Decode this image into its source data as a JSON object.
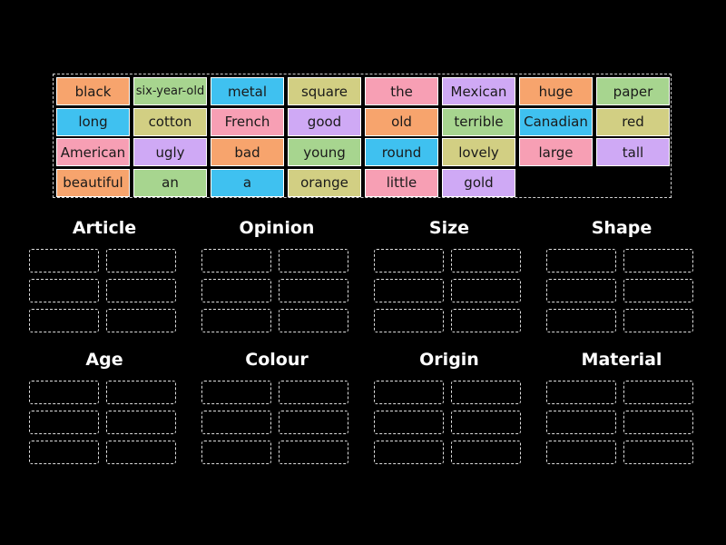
{
  "tiles": [
    {
      "text": "black",
      "color": "#f7a46d"
    },
    {
      "text": "six-year-old",
      "color": "#a7d58f"
    },
    {
      "text": "metal",
      "color": "#3fc1f0"
    },
    {
      "text": "square",
      "color": "#d2cf83"
    },
    {
      "text": "the",
      "color": "#f79fb4"
    },
    {
      "text": "Mexican",
      "color": "#cfa9f5"
    },
    {
      "text": "huge",
      "color": "#f7a46d"
    },
    {
      "text": "paper",
      "color": "#a7d58f"
    },
    {
      "text": "long",
      "color": "#3fc1f0"
    },
    {
      "text": "cotton",
      "color": "#d2cf83"
    },
    {
      "text": "French",
      "color": "#f79fb4"
    },
    {
      "text": "good",
      "color": "#cfa9f5"
    },
    {
      "text": "old",
      "color": "#f7a46d"
    },
    {
      "text": "terrible",
      "color": "#a7d58f"
    },
    {
      "text": "Canadian",
      "color": "#3fc1f0"
    },
    {
      "text": "red",
      "color": "#d2cf83"
    },
    {
      "text": "American",
      "color": "#f79fb4"
    },
    {
      "text": "ugly",
      "color": "#cfa9f5"
    },
    {
      "text": "bad",
      "color": "#f7a46d"
    },
    {
      "text": "young",
      "color": "#a7d58f"
    },
    {
      "text": "round",
      "color": "#3fc1f0"
    },
    {
      "text": "lovely",
      "color": "#d2cf83"
    },
    {
      "text": "large",
      "color": "#f79fb4"
    },
    {
      "text": "tall",
      "color": "#cfa9f5"
    },
    {
      "text": "beautiful",
      "color": "#f7a46d"
    },
    {
      "text": "an",
      "color": "#a7d58f"
    },
    {
      "text": "a",
      "color": "#3fc1f0"
    },
    {
      "text": "orange",
      "color": "#d2cf83"
    },
    {
      "text": "little",
      "color": "#f79fb4"
    },
    {
      "text": "gold",
      "color": "#cfa9f5"
    }
  ],
  "groups": [
    {
      "title": "Article"
    },
    {
      "title": "Opinion"
    },
    {
      "title": "Size"
    },
    {
      "title": "Shape"
    },
    {
      "title": "Age"
    },
    {
      "title": "Colour"
    },
    {
      "title": "Origin"
    },
    {
      "title": "Material"
    }
  ]
}
